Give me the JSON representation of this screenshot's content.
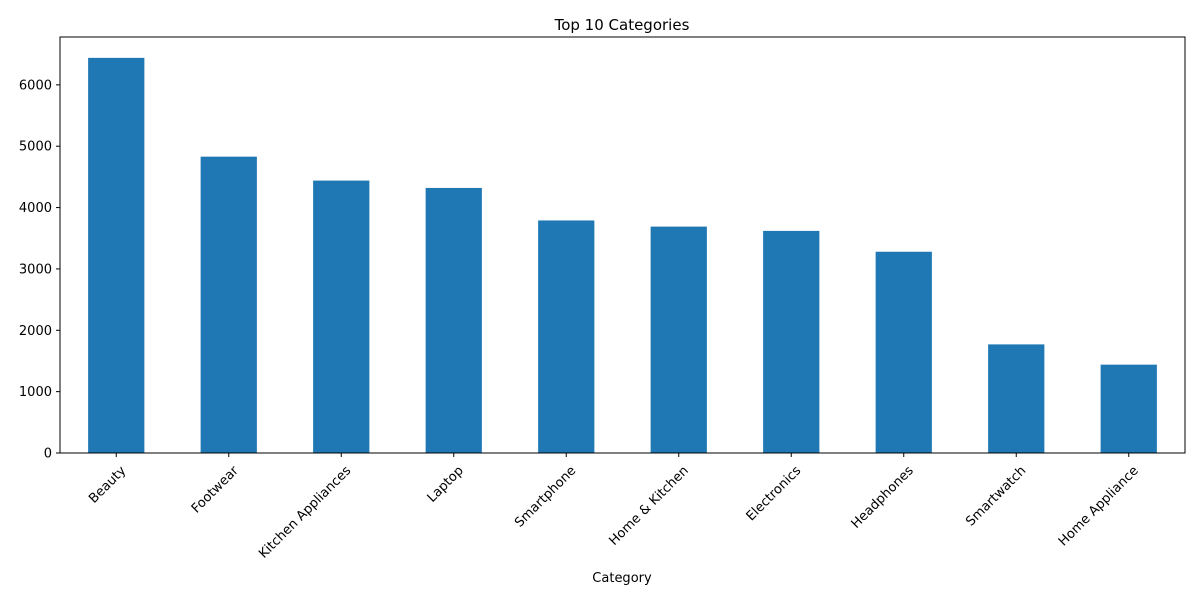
{
  "chart_data": {
    "type": "bar",
    "title": "Top 10 Categories",
    "xlabel": "Category",
    "ylabel": "",
    "categories": [
      "Beauty",
      "Footwear",
      "Kitchen Appliances",
      "Laptop",
      "Smartphone",
      "Home & Kitchen",
      "Electronics",
      "Headphones",
      "Smartwatch",
      "Home Appliance"
    ],
    "values": [
      6440,
      4830,
      4440,
      4320,
      3790,
      3690,
      3620,
      3280,
      1770,
      1440
    ],
    "ylim": [
      0,
      6780
    ],
    "yticks": [
      0,
      1000,
      2000,
      3000,
      4000,
      5000,
      6000
    ],
    "grid": false,
    "legend": "none",
    "bar_color": "#1f77b4",
    "axis_color": "#000000"
  }
}
